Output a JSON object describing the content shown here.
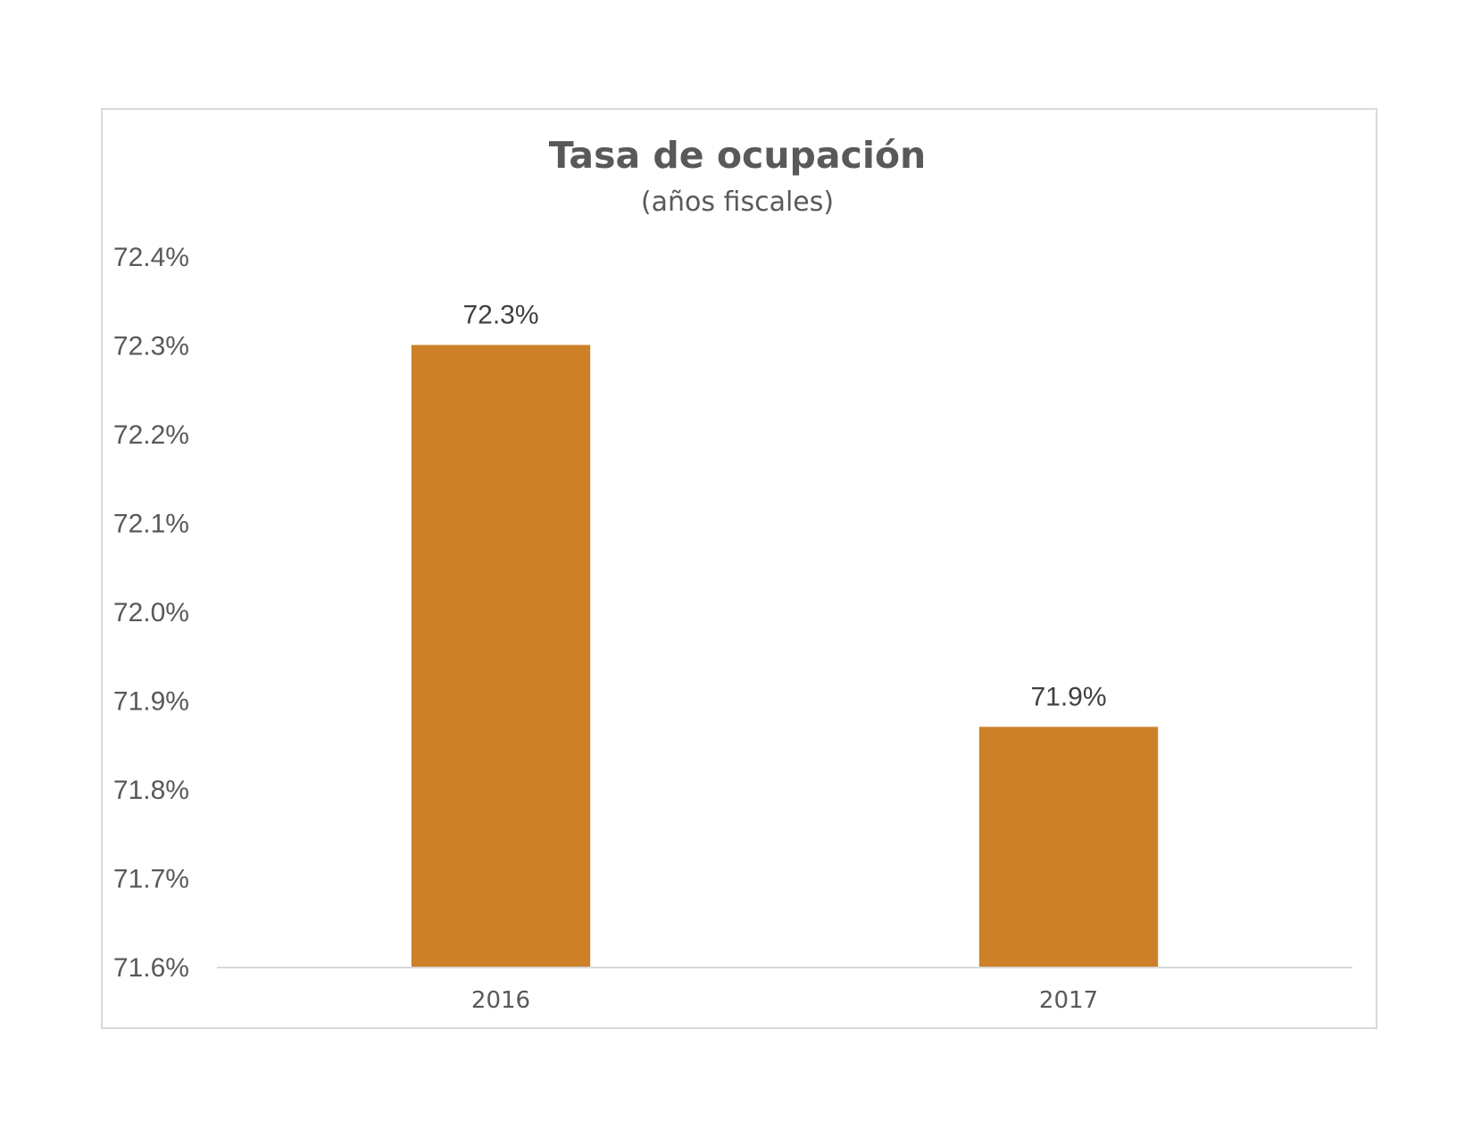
{
  "chart_data": {
    "type": "bar",
    "title": "Tasa de ocupación",
    "subtitle": "(años fiscales)",
    "categories": [
      "2016",
      "2017"
    ],
    "values": [
      72.3,
      71.87
    ],
    "data_labels": [
      "72.3%",
      "71.9%"
    ],
    "ylim": [
      71.6,
      72.4
    ],
    "yticks": [
      "71.6%",
      "71.7%",
      "71.8%",
      "71.9%",
      "72.0%",
      "72.1%",
      "72.2%",
      "72.3%",
      "72.4%"
    ],
    "ytick_values": [
      71.6,
      71.7,
      71.8,
      71.9,
      72.0,
      72.1,
      72.2,
      72.3,
      72.4
    ],
    "grid": false,
    "legend": "none",
    "bar_color": "#CD8027",
    "axis_color": "#d9d9d9",
    "text_color": "#595959"
  }
}
